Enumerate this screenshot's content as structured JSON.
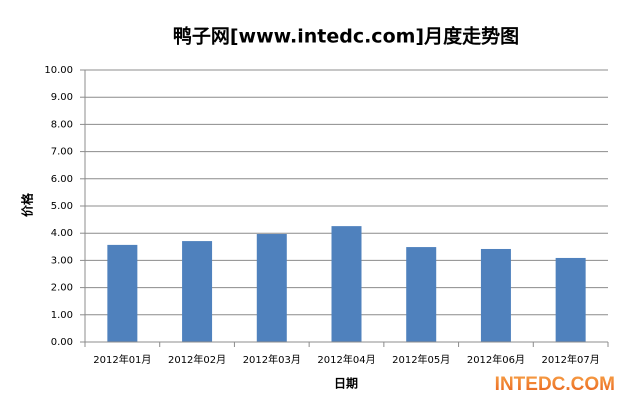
{
  "chart_data": {
    "type": "bar",
    "title": "鸭子网[www.intedc.com]月度走势图",
    "x_label": "日期",
    "y_label": "价格",
    "watermark": "INTEDC.COM",
    "categories": [
      "2012年01月",
      "2012年02月",
      "2012年03月",
      "2012年04月",
      "2012年05月",
      "2012年06月",
      "2012年07月"
    ],
    "values": [
      3.57,
      3.71,
      3.97,
      4.26,
      3.49,
      3.42,
      3.09
    ],
    "color": "#4f81bd",
    "ylim": [
      0,
      10
    ],
    "yticks": [
      {
        "value": 0,
        "label": "0.00"
      },
      {
        "value": 1,
        "label": "1.00"
      },
      {
        "value": 2,
        "label": "2.00"
      },
      {
        "value": 3,
        "label": "3.00"
      },
      {
        "value": 4,
        "label": "4.00"
      },
      {
        "value": 5,
        "label": "5.00"
      },
      {
        "value": 6,
        "label": "6.00"
      },
      {
        "value": 7,
        "label": "7.00"
      },
      {
        "value": 8,
        "label": "8.00"
      },
      {
        "value": 9,
        "label": "9.00"
      },
      {
        "value": 10,
        "label": "10.00"
      }
    ],
    "grid": true
  }
}
